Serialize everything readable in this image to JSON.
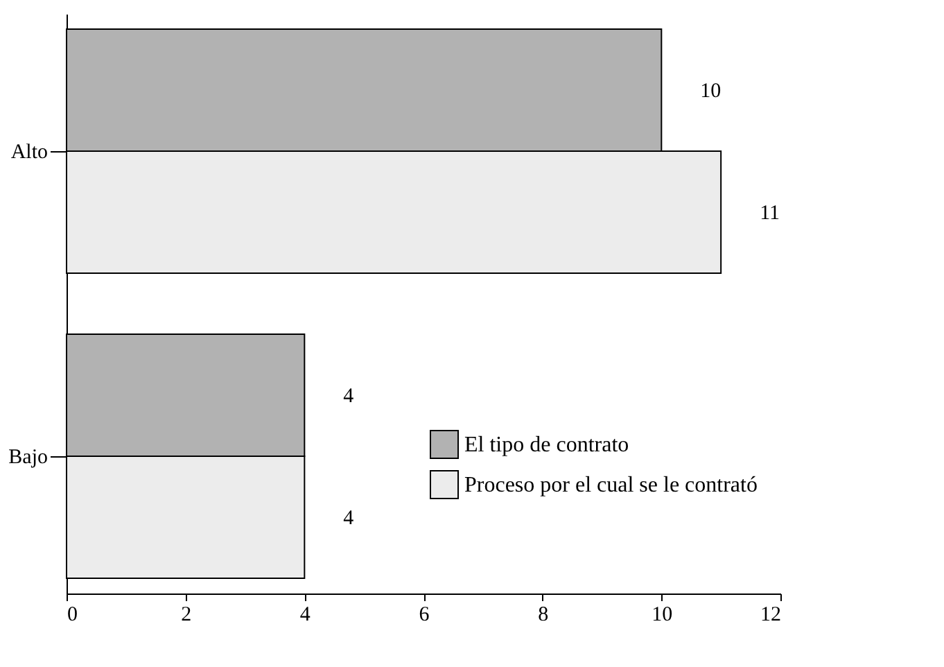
{
  "chart_data": {
    "type": "bar",
    "orientation": "horizontal",
    "categories": [
      "Alto",
      "Bajo"
    ],
    "series": [
      {
        "name": "El tipo de contrato",
        "color": "#b2b2b2",
        "values": [
          10,
          4
        ]
      },
      {
        "name": "Proceso por el cual se le contrató",
        "color": "#ececec",
        "values": [
          11,
          4
        ]
      }
    ],
    "xlim": [
      0,
      12
    ],
    "xticks": [
      0,
      2,
      4,
      6,
      8,
      10,
      12
    ],
    "data_labels": true,
    "legend": "bottom right",
    "grid": false
  }
}
